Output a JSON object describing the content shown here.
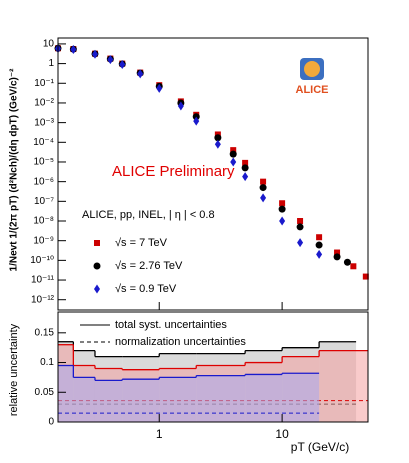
{
  "chart_data": [
    {
      "type": "scatter",
      "xlog": true,
      "ylog": true,
      "ylabel": "1/Nevt 1/(2π pT) (d²Nch)/(dη dpT) (GeV/c)⁻²",
      "annotations": [
        "ALICE Preliminary",
        "ALICE, pp, INEL, | η | < 0.8",
        "ALICE"
      ],
      "xlim": [
        0.15,
        50
      ],
      "ylim": [
        3e-13,
        20
      ],
      "yticks": [
        10,
        1,
        {
          "value": 0.1,
          "label": "10⁻¹"
        },
        {
          "value": 0.01,
          "label": "10⁻²"
        },
        {
          "value": 0.001,
          "label": "10⁻³"
        },
        {
          "value": 0.0001,
          "label": "10⁻⁴"
        },
        {
          "value": 1e-05,
          "label": "10⁻⁵"
        },
        {
          "value": 1e-06,
          "label": "10⁻⁶"
        },
        {
          "value": 1e-07,
          "label": "10⁻⁷"
        },
        {
          "value": 1e-08,
          "label": "10⁻⁸"
        },
        {
          "value": 1e-09,
          "label": "10⁻⁹"
        },
        {
          "value": 1e-10,
          "label": "10⁻¹⁰"
        },
        {
          "value": 1e-11,
          "label": "10⁻¹¹"
        },
        {
          "value": 1e-12,
          "label": "10⁻¹²"
        }
      ],
      "series": [
        {
          "name": "√s = 7 TeV",
          "color": "#cc0000",
          "marker": "square",
          "x": [
            0.15,
            0.2,
            0.3,
            0.4,
            0.5,
            0.7,
            1,
            1.5,
            2,
            3,
            4,
            5,
            7,
            10,
            14,
            20,
            28,
            38,
            48
          ],
          "values": [
            6,
            5.5,
            3.2,
            1.8,
            1.0,
            0.35,
            0.08,
            0.012,
            0.0025,
            0.00025,
            4e-05,
            9e-06,
            1e-06,
            8e-08,
            1e-08,
            1.5e-09,
            2.5e-10,
            5e-11,
            1.5e-11
          ]
        },
        {
          "name": "√s = 2.76 TeV",
          "color": "#000000",
          "marker": "circle",
          "x": [
            0.15,
            0.2,
            0.3,
            0.4,
            0.5,
            0.7,
            1,
            1.5,
            2,
            3,
            4,
            5,
            7,
            10,
            14,
            20,
            28,
            34
          ],
          "values": [
            6,
            5.4,
            3.1,
            1.7,
            0.95,
            0.33,
            0.07,
            0.01,
            0.002,
            0.00017,
            2.5e-05,
            5e-06,
            5e-07,
            4e-08,
            5e-09,
            6e-10,
            1.5e-10,
            8e-11
          ]
        },
        {
          "name": "√s = 0.9 TeV",
          "color": "#1a1acc",
          "marker": "diamond",
          "x": [
            0.15,
            0.2,
            0.3,
            0.4,
            0.5,
            0.7,
            1,
            1.5,
            2,
            3,
            4,
            5,
            7,
            10,
            14,
            20
          ],
          "values": [
            5.8,
            5.2,
            3,
            1.6,
            0.9,
            0.3,
            0.055,
            0.007,
            0.0012,
            8e-05,
            1e-05,
            1.8e-06,
            1.5e-07,
            1e-08,
            8e-10,
            2e-10
          ]
        }
      ]
    },
    {
      "type": "step",
      "xlog": true,
      "xlabel": "pT (GeV/c)",
      "ylabel": "relative uncertainty",
      "legend": [
        "total syst. uncertainties",
        "normalization uncertainties"
      ],
      "xlim": [
        0.15,
        50
      ],
      "ylim": [
        0,
        0.185
      ],
      "xticks": [
        1,
        10
      ],
      "yticks": [
        0,
        0.05,
        0.1,
        0.15
      ],
      "series": [
        {
          "color": "#000000",
          "fill": "#bbbbbb",
          "bins": [
            0.15,
            0.2,
            0.3,
            0.5,
            1,
            2,
            5,
            10,
            20,
            40
          ],
          "values": [
            0.135,
            0.12,
            0.11,
            0.11,
            0.115,
            0.115,
            0.12,
            0.125,
            0.135
          ],
          "normalization": 0.03
        },
        {
          "color": "#dd0000",
          "fill": "#f4a0a0",
          "bins": [
            0.15,
            0.2,
            0.3,
            0.5,
            1,
            2,
            5,
            10,
            20,
            50
          ],
          "values": [
            0.13,
            0.095,
            0.09,
            0.088,
            0.09,
            0.095,
            0.1,
            0.11,
            0.12
          ],
          "normalization": 0.036
        },
        {
          "color": "#1a1acc",
          "fill": "#a8a8ee",
          "bins": [
            0.15,
            0.2,
            0.3,
            0.5,
            1,
            2,
            5,
            10,
            20
          ],
          "values": [
            0.095,
            0.075,
            0.07,
            0.072,
            0.075,
            0.078,
            0.08,
            0.082
          ],
          "normalization": 0.015
        }
      ]
    }
  ]
}
